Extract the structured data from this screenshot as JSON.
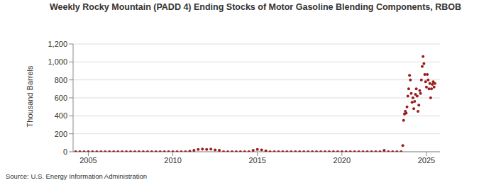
{
  "chart_data": {
    "type": "scatter",
    "title": "Weekly Rocky Mountain (PADD 4) Ending Stocks of Motor Gasoline Blending Components, RBOB",
    "y_label": "Thousand Barrels",
    "source": "Source: U.S. Energy Information Administration",
    "xlim": [
      2004.1,
      2025.8
    ],
    "xticks": [
      2005,
      2010,
      2015,
      2020,
      2025
    ],
    "ylim": [
      0,
      1200
    ],
    "yticks": [
      0,
      200,
      400,
      600,
      800,
      {
        "value": 1000,
        "label": "1,000"
      },
      {
        "value": 1200,
        "label": "1,200"
      }
    ],
    "grid": true,
    "marker": "circle",
    "series": [
      {
        "name": "RBOB",
        "color": "#9b1c1c",
        "x": [
          2004.25,
          2004.5,
          2004.75,
          2005.0,
          2005.25,
          2005.5,
          2005.75,
          2006.0,
          2006.25,
          2006.5,
          2006.75,
          2007.0,
          2007.25,
          2007.5,
          2007.75,
          2008.0,
          2008.25,
          2008.5,
          2008.75,
          2009.0,
          2009.25,
          2009.5,
          2009.75,
          2010.0,
          2010.25,
          2010.5,
          2010.75,
          2011.0,
          2011.25,
          2011.5,
          2011.75,
          2012.0,
          2012.25,
          2012.5,
          2012.75,
          2013.0,
          2013.25,
          2013.5,
          2013.75,
          2014.0,
          2014.25,
          2014.5,
          2014.75,
          2015.0,
          2015.25,
          2015.5,
          2015.75,
          2016.0,
          2016.25,
          2016.5,
          2016.75,
          2017.0,
          2017.25,
          2017.5,
          2017.75,
          2018.0,
          2018.25,
          2018.5,
          2018.75,
          2019.0,
          2019.25,
          2019.5,
          2019.75,
          2020.0,
          2020.25,
          2020.5,
          2020.75,
          2021.0,
          2021.25,
          2021.5,
          2021.75,
          2022.0,
          2022.25,
          2022.5,
          2022.75,
          2023.0,
          2023.25,
          2023.5,
          2023.6,
          2023.65,
          2023.7,
          2023.75,
          2023.8,
          2023.85,
          2023.9,
          2023.95,
          2024.0,
          2024.05,
          2024.1,
          2024.15,
          2024.2,
          2024.25,
          2024.3,
          2024.35,
          2024.4,
          2024.45,
          2024.5,
          2024.55,
          2024.6,
          2024.65,
          2024.7,
          2024.75,
          2024.8,
          2024.85,
          2024.9,
          2024.95,
          2025.0,
          2025.05,
          2025.1,
          2025.15,
          2025.2,
          2025.25,
          2025.3,
          2025.35,
          2025.4,
          2025.45,
          2025.5
        ],
        "values": [
          0,
          0,
          0,
          0,
          0,
          0,
          0,
          0,
          0,
          0,
          0,
          0,
          0,
          0,
          0,
          0,
          0,
          0,
          0,
          0,
          0,
          0,
          0,
          0,
          0,
          0,
          0,
          5,
          15,
          25,
          30,
          25,
          30,
          20,
          15,
          0,
          0,
          0,
          0,
          0,
          0,
          0,
          15,
          25,
          20,
          10,
          0,
          0,
          0,
          0,
          0,
          0,
          0,
          0,
          0,
          0,
          0,
          0,
          0,
          0,
          0,
          0,
          0,
          0,
          0,
          0,
          0,
          0,
          0,
          0,
          0,
          0,
          0,
          15,
          0,
          0,
          0,
          0,
          70,
          350,
          420,
          450,
          430,
          500,
          620,
          700,
          850,
          800,
          650,
          550,
          600,
          480,
          560,
          640,
          700,
          620,
          450,
          520,
          680,
          650,
          800,
          950,
          1060,
          980,
          860,
          780,
          720,
          860,
          800,
          700,
          760,
          600,
          700,
          750,
          780,
          720,
          760
        ]
      }
    ]
  }
}
